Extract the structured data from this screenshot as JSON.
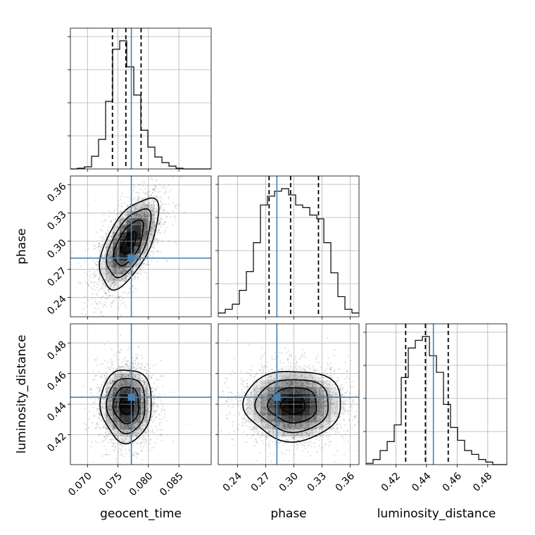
{
  "colors": {
    "truth": "#4682b4",
    "frame": "#000000",
    "grid": "#b0b0b0"
  },
  "chart_data": {
    "type": "corner",
    "parameters": [
      "geocent_time",
      "phase",
      "luminosity_distance"
    ],
    "truths": {
      "geocent_time": 0.0772,
      "phase": 0.282,
      "luminosity_distance": 0.4445
    },
    "ranges": {
      "geocent_time": [
        0.0672,
        0.0903
      ],
      "phase": [
        0.2195,
        0.3695
      ],
      "luminosity_distance": [
        0.4005,
        0.4925
      ]
    },
    "ticks": {
      "geocent_time": [
        0.07,
        0.075,
        0.08,
        0.085
      ],
      "phase": [
        0.24,
        0.27,
        0.3,
        0.33,
        0.36
      ],
      "luminosity_distance": [
        0.42,
        0.44,
        0.46,
        0.48
      ]
    },
    "tick_labels": {
      "geocent_time": [
        "0.070",
        "0.075",
        "0.080",
        "0.085"
      ],
      "phase": [
        "0.24",
        "0.27",
        "0.30",
        "0.33",
        "0.36"
      ],
      "luminosity_distance": [
        "0.42",
        "0.44",
        "0.46",
        "0.48"
      ]
    },
    "quantiles": {
      "geocent_time": [
        0.0741,
        0.0763,
        0.0788
      ],
      "phase": [
        0.2737,
        0.2966,
        0.3263
      ],
      "luminosity_distance": [
        0.4264,
        0.4393,
        0.4542
      ]
    },
    "histograms": {
      "geocent_time": {
        "edges": [
          0.0672,
          0.06836,
          0.06951,
          0.07067,
          0.07182,
          0.07298,
          0.07413,
          0.07529,
          0.07644,
          0.0776,
          0.07875,
          0.07991,
          0.08106,
          0.08222,
          0.08337,
          0.08453,
          0.08568,
          0.08684,
          0.08799,
          0.08915,
          0.0903
        ],
        "counts": [
          0,
          1,
          3,
          18,
          42,
          96,
          170,
          182,
          145,
          105,
          55,
          31,
          17,
          9,
          4,
          1,
          0,
          0,
          0,
          0
        ]
      },
      "phase": {
        "edges": [
          0.2195,
          0.227,
          0.2345,
          0.242,
          0.2495,
          0.257,
          0.2645,
          0.272,
          0.2795,
          0.287,
          0.2945,
          0.302,
          0.3095,
          0.317,
          0.3245,
          0.332,
          0.3395,
          0.347,
          0.3545,
          0.362,
          0.3695
        ],
        "counts": [
          3,
          6,
          10,
          21,
          36,
          59,
          89,
          96,
          100,
          102,
          97,
          89,
          87,
          81,
          78,
          59,
          35,
          16,
          6,
          3
        ]
      },
      "luminosity_distance": {
        "edges": [
          0.4005,
          0.4051,
          0.4097,
          0.4143,
          0.4189,
          0.4235,
          0.4281,
          0.4327,
          0.4373,
          0.4419,
          0.4465,
          0.4511,
          0.4557,
          0.4603,
          0.4649,
          0.4695,
          0.4741,
          0.4787,
          0.4833,
          0.4879,
          0.4925
        ],
        "counts": [
          1,
          4,
          11,
          18,
          31,
          68,
          91,
          97,
          100,
          85,
          72,
          47,
          29,
          19,
          11,
          8,
          4,
          2,
          0,
          0
        ]
      }
    },
    "joint": [
      {
        "x": "geocent_time",
        "y": "phase",
        "mean": [
          0.0768,
          0.298
        ],
        "sd": [
          0.0024,
          0.024
        ],
        "rho": 0.6
      },
      {
        "x": "geocent_time",
        "y": "luminosity_distance",
        "mean": [
          0.0764,
          0.4395
        ],
        "sd": [
          0.0021,
          0.012
        ],
        "rho": 0.0
      },
      {
        "x": "phase",
        "y": "luminosity_distance",
        "mean": [
          0.2995,
          0.4395
        ],
        "sd": [
          0.026,
          0.0115
        ],
        "rho": 0.0
      }
    ],
    "contour_levels_sigma": [
      0.5,
      1.0,
      1.5,
      2.0
    ],
    "xlabels": [
      "geocent_time",
      "phase",
      "luminosity_distance"
    ],
    "ylabels": [
      "",
      "phase",
      "luminosity_distance"
    ],
    "grid": true
  }
}
